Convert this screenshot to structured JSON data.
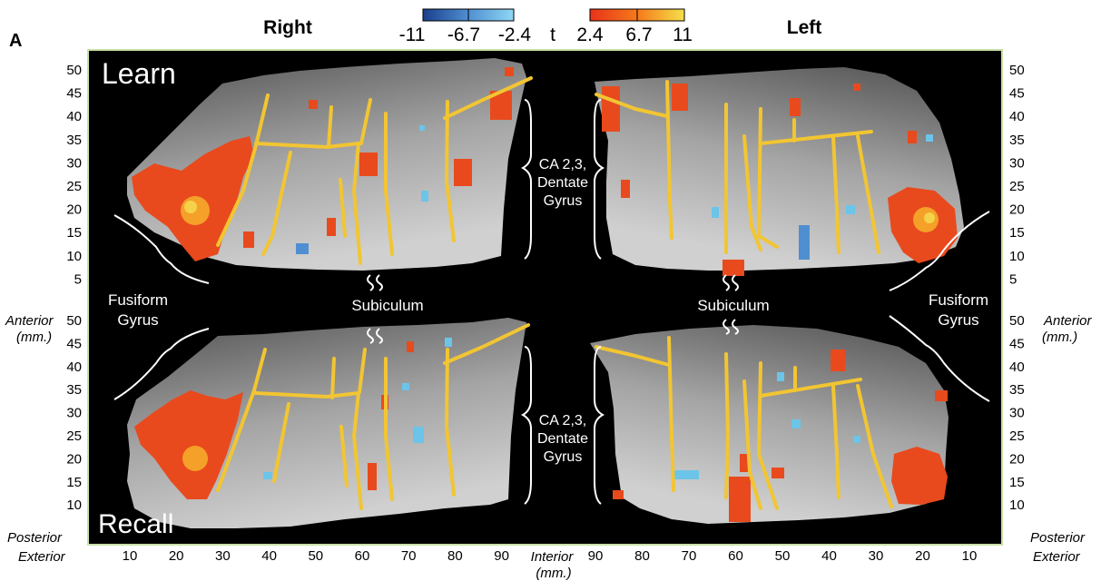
{
  "panel_label": "A",
  "header": {
    "right_hemisphere": "Right",
    "left_hemisphere": "Left",
    "stat_symbol": "t",
    "neg_scale": [
      "-11",
      "-6.7",
      "-2.4"
    ],
    "pos_scale": [
      "2.4",
      "6.7",
      "11"
    ]
  },
  "colors": {
    "background": "#000000",
    "accent_frame": "#c9e0a8",
    "trace": "#f2c532",
    "activation_positive": "#e84a1e",
    "activation_negative": "#6cc4e8",
    "neg_scale_gradient": [
      "#1a3e8c",
      "#4f8fd1",
      "#8fd6f5"
    ],
    "pos_scale_gradient": [
      "#e8321a",
      "#f57a1a",
      "#f5e04a"
    ]
  },
  "panels": {
    "top_label": "Learn",
    "bottom_label": "Recall"
  },
  "regions": {
    "ca_dentate": [
      "CA 2,3,",
      "Dentate",
      "Gyrus"
    ],
    "subiculum": "Subiculum",
    "fusiform": [
      "Fusiform",
      "Gyrus"
    ]
  },
  "axes": {
    "y_ticks": [
      "50",
      "45",
      "40",
      "35",
      "30",
      "25",
      "20",
      "15",
      "10",
      "5"
    ],
    "anterior": "Anterior",
    "posterior": "Posterior",
    "mm": "(mm.)",
    "x_ticks_right": [
      "10",
      "20",
      "30",
      "40",
      "50",
      "60",
      "70",
      "80",
      "90"
    ],
    "x_ticks_left": [
      "90",
      "80",
      "70",
      "60",
      "50",
      "40",
      "30",
      "20",
      "10"
    ],
    "exterior": "Exterior",
    "interior": "Interior"
  }
}
